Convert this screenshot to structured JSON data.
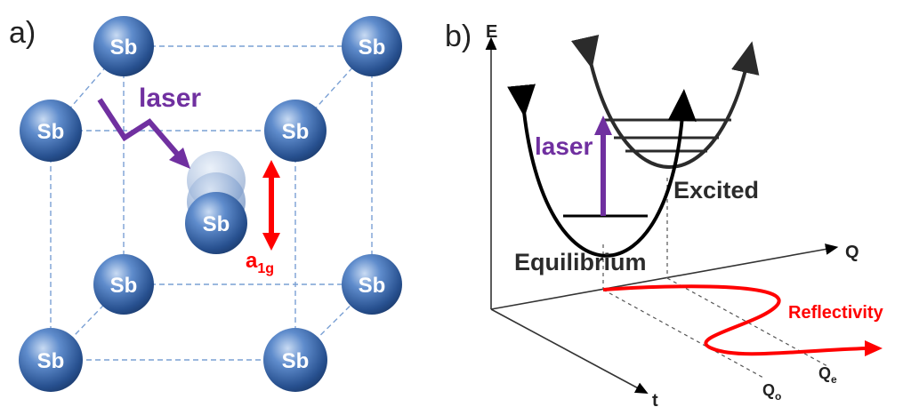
{
  "panel_a": {
    "label": "a)",
    "atom_label": "Sb",
    "laser_label": "laser",
    "mode_label": "a",
    "mode_sub": "1g",
    "colors": {
      "atom": "#4a77b8",
      "laser": "#7030a0",
      "mode": "#ff0000",
      "edge": "#7aa0d4"
    }
  },
  "panel_b": {
    "label": "b)",
    "axis_e": "E",
    "axis_q": "Q",
    "axis_t": "t",
    "laser_label": "laser",
    "excited_label": "Excited",
    "equilibrium_label": "Equilibrium",
    "reflectivity_label": "Reflectivity",
    "q0_main": "Q",
    "q0_sub": "o",
    "qe_main": "Q",
    "qe_sub": "e",
    "colors": {
      "laser": "#7030a0",
      "reflectivity": "#ff0000",
      "curve": "#000000",
      "excited_curve": "#2b2b2b"
    }
  }
}
